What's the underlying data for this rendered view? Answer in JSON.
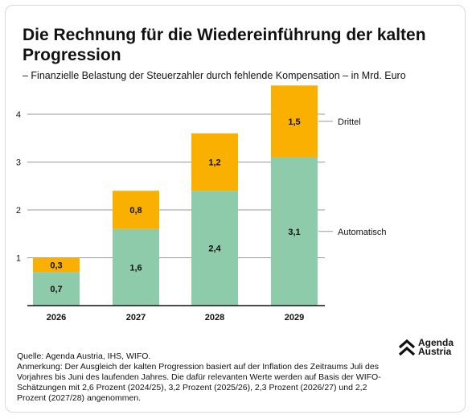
{
  "header": {
    "title": "Die Rechnung für die Wiedereinführung der kalten Progression",
    "subtitle": "– Finanzielle Belastung der Steuerzahler durch fehlende Kompensation – in Mrd. Euro"
  },
  "chart_data": {
    "type": "bar",
    "stacked": true,
    "categories": [
      "2026",
      "2027",
      "2028",
      "2029"
    ],
    "series": [
      {
        "name": "Automatisch",
        "values": [
          0.7,
          1.6,
          2.4,
          3.1
        ],
        "labels": [
          "0,7",
          "1,6",
          "2,4",
          "3,1"
        ],
        "color": "#8dcbab"
      },
      {
        "name": "Drittel",
        "values": [
          0.3,
          0.8,
          1.2,
          1.5
        ],
        "labels": [
          "0,3",
          "0,8",
          "1,2",
          "1,5"
        ],
        "color": "#f9b000"
      }
    ],
    "yticks": [
      1,
      2,
      3,
      4
    ],
    "ylim": [
      0,
      4.6
    ],
    "grid": true,
    "legend": "right, inline labels"
  },
  "footer": {
    "source": "Quelle: Agenda Austria, IHS, WIFO.",
    "note": "Anmerkung: Der Ausgleich der kalten Progression basiert auf der Inflation des Zeitraums Juli des Vorjahres bis Juni des laufenden Jahres. Die dafür relevanten Werte werden auf Basis der WIFO-Schätzungen mit 2,6 Prozent (2024/25), 3,2 Prozent (2025/26), 2,3 Prozent (2026/27) und 2,2 Prozent (2027/28) angenommen."
  },
  "logo": {
    "line1": "Agenda",
    "line2": "Austria",
    "icon": "agenda-austria-chevron-icon"
  }
}
